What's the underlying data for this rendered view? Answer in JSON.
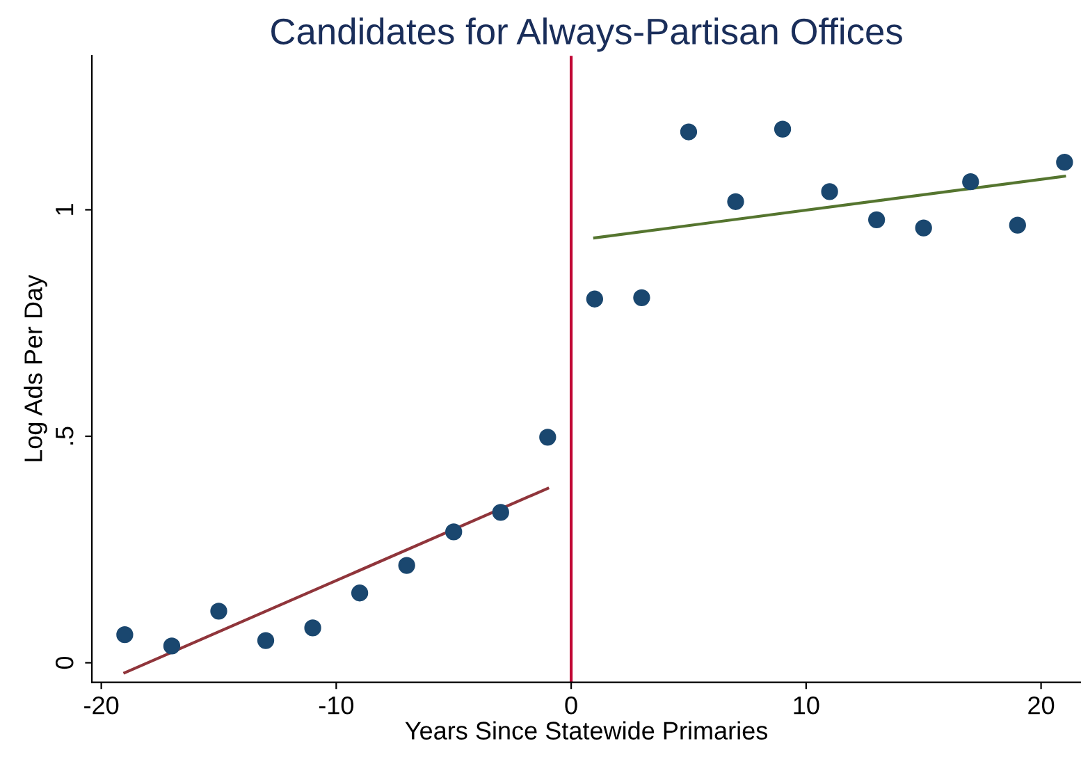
{
  "chart_data": {
    "type": "scatter",
    "title": "Candidates for Always-Partisan Offices",
    "xlabel": "Years Since Statewide Primaries",
    "ylabel": "Log Ads Per Day",
    "series": [
      {
        "marker": "circle",
        "color": "#1a476f",
        "x": [
          -19,
          -17,
          -15,
          -13,
          -11,
          -9,
          -7,
          -5,
          -3,
          -1,
          1,
          3,
          5,
          7,
          9,
          11,
          13,
          15,
          17,
          19,
          21
        ],
        "values": [
          0.062,
          0.037,
          0.114,
          0.049,
          0.077,
          0.154,
          0.215,
          0.289,
          0.332,
          0.498,
          0.803,
          0.806,
          1.172,
          1.018,
          1.178,
          1.04,
          0.978,
          0.96,
          1.062,
          0.966,
          1.105
        ]
      },
      {
        "type": "line",
        "color": "#90353b",
        "x": [
          -19,
          -1
        ],
        "values": [
          -0.022,
          0.385
        ]
      },
      {
        "type": "line",
        "color": "#55752f",
        "x": [
          1,
          21
        ],
        "values": [
          0.938,
          1.074
        ]
      }
    ],
    "ref_lines": [
      {
        "axis": "x",
        "value": 0,
        "color": "#c10534"
      }
    ],
    "xlim": [
      -20.4,
      21.7
    ],
    "ylim": [
      -0.043,
      1.34
    ],
    "xticks": [
      -20,
      -10,
      0,
      10,
      20
    ],
    "yticks": [
      {
        "value": 0,
        "label": "0"
      },
      {
        "value": 0.5,
        "label": ".5"
      },
      {
        "value": 1,
        "label": "1"
      }
    ],
    "grid": false,
    "legend": false
  }
}
